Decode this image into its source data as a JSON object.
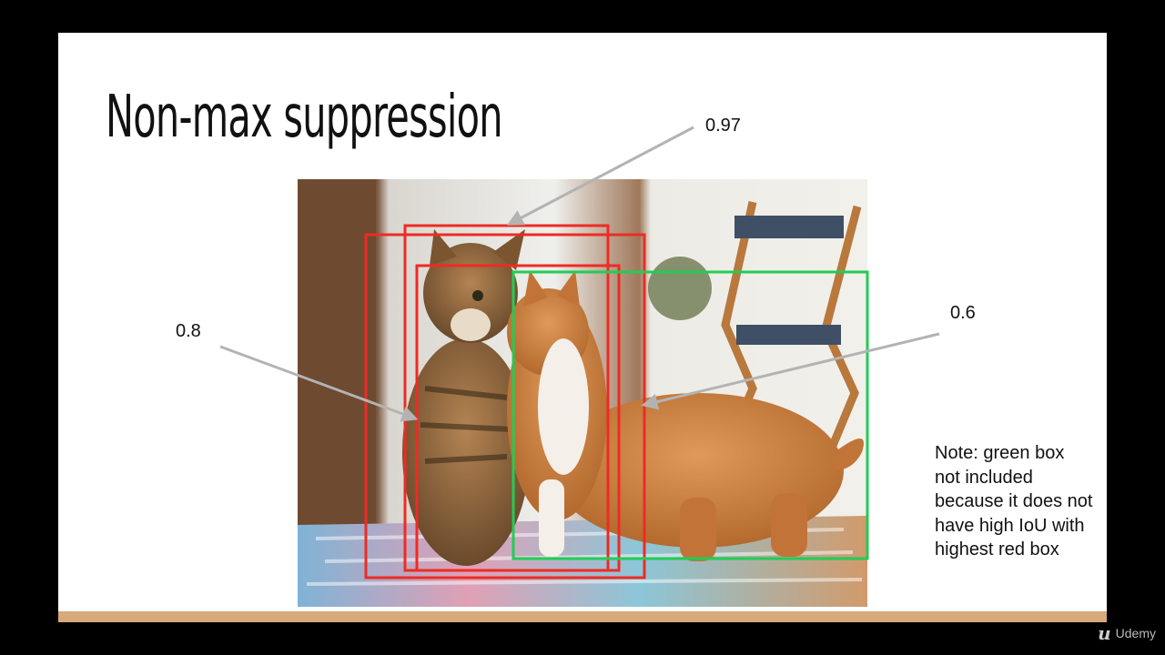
{
  "slide": {
    "title": "Non-max suppression",
    "scores": {
      "top": "0.97",
      "left": "0.8",
      "right": "0.6"
    },
    "note": "Note: green box not included because it does not have high IoU with highest red box"
  },
  "branding": {
    "name": "Udemy",
    "logo_icon": "udemy-u-icon"
  },
  "colors": {
    "red_box": "#ee2b24",
    "green_box": "#22cc55",
    "arrow": "#b3b3b3",
    "bottom_bar": "#d8a97a"
  },
  "photo": {
    "subject": "cat-pair-icon"
  }
}
